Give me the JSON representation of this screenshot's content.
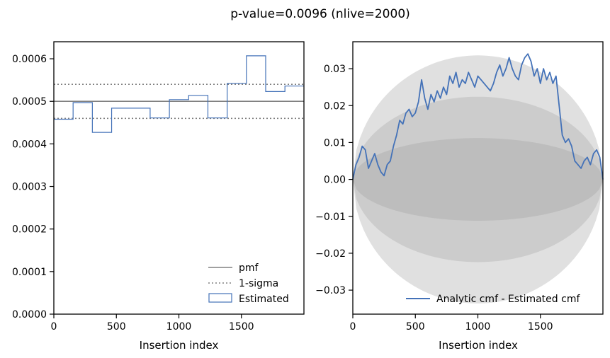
{
  "figure": {
    "title": "p-value=0.0096 (nlive=2000)"
  },
  "chart_data": [
    {
      "type": "line",
      "subtype": "step-histogram",
      "xlabel": "Insertion index",
      "ylabel": "",
      "xlim": [
        0,
        2000
      ],
      "ylim": [
        0,
        0.00064
      ],
      "xticks": [
        0,
        500,
        1000,
        1500
      ],
      "yticks": [
        0,
        0.0001,
        0.0002,
        0.0003,
        0.0004,
        0.0005,
        0.0006
      ],
      "ytick_labels": [
        "0.0000",
        "0.0001",
        "0.0002",
        "0.0003",
        "0.0004",
        "0.0005",
        "0.0006"
      ],
      "pmf": 0.0005,
      "sigma_lower": 0.00046,
      "sigma_upper": 0.00054,
      "bin_edges": [
        0,
        154,
        308,
        462,
        616,
        770,
        924,
        1078,
        1232,
        1386,
        1540,
        1694,
        1848,
        2000
      ],
      "estimated": [
        0.000458,
        0.000497,
        0.000427,
        0.000484,
        0.000484,
        0.000461,
        0.000504,
        0.000514,
        0.000461,
        0.000542,
        0.000607,
        0.000523,
        0.000536
      ],
      "legend": {
        "placement": "lower-right",
        "entries": [
          {
            "label": "pmf",
            "style": "solid",
            "color": "#808080"
          },
          {
            "label": "1-sigma",
            "style": "dotted",
            "color": "#808080"
          },
          {
            "label": "Estimated",
            "style": "box",
            "color": "#4472b8"
          }
        ]
      },
      "colors": {
        "line": "#808080",
        "hist": "#4472b8"
      }
    },
    {
      "type": "line",
      "xlabel": "Insertion index",
      "ylabel": "",
      "xlim": [
        0,
        2000
      ],
      "ylim": [
        -0.0365,
        0.0373
      ],
      "xticks": [
        0,
        500,
        1000,
        1500
      ],
      "yticks": [
        -0.03,
        -0.02,
        -0.01,
        0.0,
        0.01,
        0.02,
        0.03
      ],
      "ytick_labels": [
        "−0.03",
        "−0.02",
        "−0.01",
        "0.00",
        "0.01",
        "0.02",
        "0.03"
      ],
      "sigma_bands": [
        {
          "sigma": 1,
          "amplitude": 0.0112,
          "color": "#bdbdbd"
        },
        {
          "sigma": 2,
          "amplitude": 0.0224,
          "color": "#cccccc"
        },
        {
          "sigma": 3,
          "amplitude": 0.0336,
          "color": "#e0e0e0"
        }
      ],
      "series": [
        {
          "name": "Analytic cmf - Estimated cmf",
          "color": "#4472b8",
          "x": [
            0,
            25,
            50,
            75,
            100,
            125,
            150,
            175,
            200,
            225,
            250,
            275,
            300,
            325,
            350,
            375,
            400,
            425,
            450,
            475,
            500,
            525,
            550,
            575,
            600,
            625,
            650,
            675,
            700,
            725,
            750,
            775,
            800,
            825,
            850,
            875,
            900,
            925,
            950,
            975,
            1000,
            1025,
            1050,
            1075,
            1100,
            1125,
            1150,
            1175,
            1200,
            1225,
            1250,
            1275,
            1300,
            1325,
            1350,
            1375,
            1400,
            1425,
            1450,
            1475,
            1500,
            1525,
            1550,
            1575,
            1600,
            1625,
            1650,
            1675,
            1700,
            1725,
            1750,
            1775,
            1800,
            1825,
            1850,
            1875,
            1900,
            1925,
            1950,
            1975,
            2000
          ],
          "values": [
            0.0,
            0.004,
            0.006,
            0.009,
            0.008,
            0.003,
            0.005,
            0.007,
            0.004,
            0.002,
            0.001,
            0.004,
            0.005,
            0.009,
            0.012,
            0.016,
            0.015,
            0.018,
            0.019,
            0.017,
            0.018,
            0.021,
            0.027,
            0.022,
            0.019,
            0.023,
            0.021,
            0.024,
            0.022,
            0.025,
            0.023,
            0.028,
            0.026,
            0.029,
            0.025,
            0.027,
            0.026,
            0.029,
            0.027,
            0.025,
            0.028,
            0.027,
            0.026,
            0.025,
            0.024,
            0.026,
            0.029,
            0.031,
            0.028,
            0.03,
            0.033,
            0.03,
            0.028,
            0.027,
            0.031,
            0.033,
            0.034,
            0.032,
            0.028,
            0.03,
            0.026,
            0.03,
            0.027,
            0.029,
            0.026,
            0.028,
            0.02,
            0.012,
            0.01,
            0.011,
            0.009,
            0.005,
            0.004,
            0.003,
            0.005,
            0.006,
            0.004,
            0.007,
            0.008,
            0.006,
            0.0
          ]
        }
      ],
      "legend": {
        "placement": "lower-right",
        "entries": [
          {
            "label": "Analytic cmf - Estimated cmf",
            "style": "solid",
            "color": "#4472b8"
          }
        ]
      }
    }
  ]
}
